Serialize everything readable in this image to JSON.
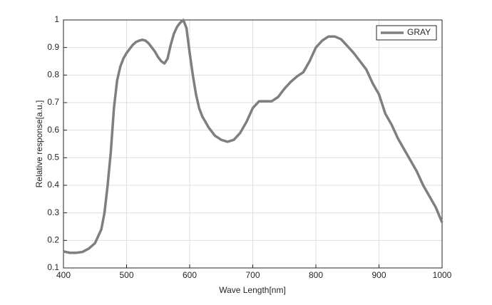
{
  "chart_data": {
    "type": "line",
    "xlabel": "Wave Length[nm]",
    "ylabel": "Relative response[a.u.]",
    "x": [
      400,
      410,
      420,
      430,
      440,
      450,
      460,
      465,
      470,
      475,
      480,
      485,
      490,
      495,
      500,
      505,
      510,
      515,
      520,
      525,
      530,
      535,
      540,
      545,
      550,
      555,
      560,
      565,
      570,
      575,
      580,
      585,
      590,
      595,
      600,
      605,
      610,
      615,
      620,
      630,
      640,
      650,
      660,
      670,
      680,
      690,
      700,
      710,
      720,
      730,
      740,
      750,
      760,
      770,
      780,
      790,
      800,
      810,
      820,
      830,
      840,
      850,
      860,
      870,
      880,
      890,
      900,
      910,
      920,
      930,
      940,
      950,
      960,
      970,
      980,
      990,
      1000
    ],
    "series": [
      {
        "name": "GRAY",
        "color": "#7f7f7f",
        "values": [
          0.16,
          0.155,
          0.155,
          0.158,
          0.17,
          0.19,
          0.24,
          0.3,
          0.4,
          0.52,
          0.68,
          0.78,
          0.83,
          0.86,
          0.88,
          0.895,
          0.91,
          0.92,
          0.925,
          0.928,
          0.925,
          0.915,
          0.9,
          0.885,
          0.865,
          0.85,
          0.842,
          0.86,
          0.91,
          0.95,
          0.975,
          0.99,
          1.0,
          0.97,
          0.88,
          0.8,
          0.73,
          0.68,
          0.65,
          0.61,
          0.58,
          0.565,
          0.558,
          0.565,
          0.59,
          0.63,
          0.68,
          0.705,
          0.705,
          0.705,
          0.72,
          0.75,
          0.775,
          0.795,
          0.81,
          0.85,
          0.9,
          0.925,
          0.94,
          0.94,
          0.93,
          0.905,
          0.88,
          0.85,
          0.82,
          0.77,
          0.73,
          0.66,
          0.62,
          0.57,
          0.53,
          0.49,
          0.45,
          0.4,
          0.36,
          0.32,
          0.265
        ]
      }
    ],
    "xlim": [
      400,
      1000
    ],
    "xticks": [
      400,
      500,
      600,
      700,
      800,
      900,
      1000
    ],
    "ylim": [
      0.1,
      1
    ],
    "yticks": [
      0.1,
      0.2,
      0.3,
      0.4,
      0.5,
      0.6,
      0.7,
      0.8,
      0.9,
      1
    ],
    "grid": true,
    "legend": "upper right"
  }
}
